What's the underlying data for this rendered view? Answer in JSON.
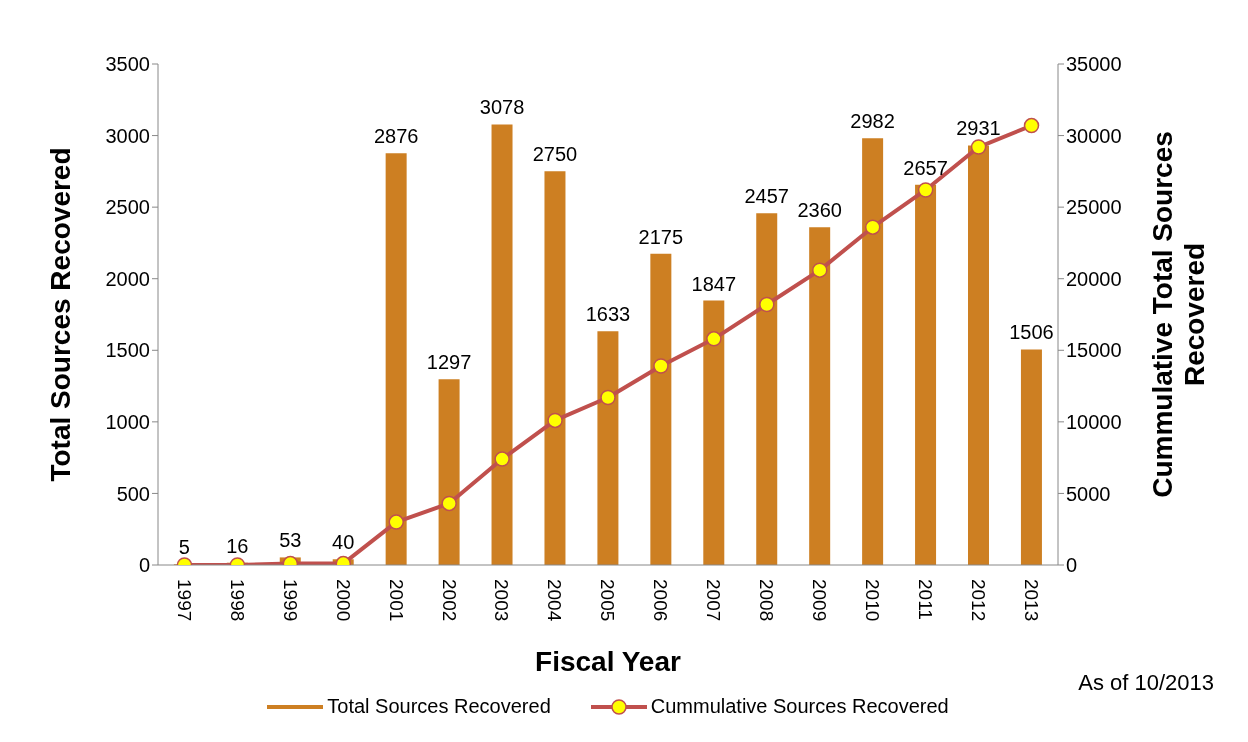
{
  "chart_data": {
    "type": "bar",
    "xlabel": "Fiscal Year",
    "ylabel": "Total Sources Recovered",
    "y2label": "Cummulative Total Sources Recovered",
    "annotations": [
      "As of 10/2013"
    ],
    "categories": [
      "1997",
      "1998",
      "1999",
      "2000",
      "2001",
      "2002",
      "2003",
      "2004",
      "2005",
      "2006",
      "2007",
      "2008",
      "2009",
      "2010",
      "2011",
      "2012",
      "2013"
    ],
    "series": [
      {
        "name": "Total Sources Recovered",
        "color": "#cd7f22",
        "values": [
          5,
          16,
          53,
          40,
          2876,
          1297,
          3078,
          2750,
          1633,
          2175,
          1847,
          2457,
          2360,
          2982,
          2657,
          2931,
          1506
        ],
        "value_labels": [
          "5",
          "16",
          "53",
          "40",
          "2876",
          "1297",
          "3078",
          "2750",
          "1633",
          "2175",
          "1847",
          "2457",
          "2360",
          "2982",
          "2657",
          "2931",
          "1506"
        ]
      },
      {
        "name": "Cummulative Sources Recovered",
        "type": "line",
        "axis": "y2",
        "color": "#c0504d",
        "marker": "circle",
        "line_style": "solid",
        "values": [
          0,
          0,
          100,
          100,
          3000,
          4300,
          7400,
          10100,
          11700,
          13900,
          15800,
          18200,
          20600,
          23600,
          26200,
          29200,
          30700
        ]
      }
    ],
    "ylim": [
      0,
      3500
    ],
    "yticks": [
      0,
      500,
      1000,
      1500,
      2000,
      2500,
      3000,
      3500
    ],
    "y2lim": [
      0,
      35000
    ],
    "y2ticks": [
      0,
      5000,
      10000,
      15000,
      20000,
      25000,
      30000,
      35000
    ],
    "legend": "bottom"
  }
}
